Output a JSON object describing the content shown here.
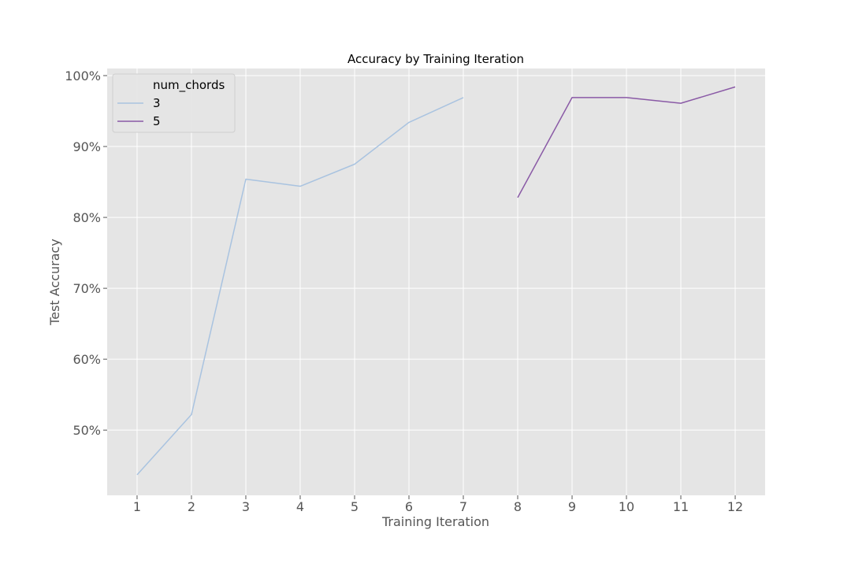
{
  "chart_data": {
    "type": "line",
    "title": "Accuracy by Training Iteration",
    "xlabel": "Training Iteration",
    "ylabel": "Test Accuracy",
    "xlim": [
      0.45,
      12.55
    ],
    "ylim": [
      0.408,
      1.01
    ],
    "x_ticks": [
      1,
      2,
      3,
      4,
      5,
      6,
      7,
      8,
      9,
      10,
      11,
      12
    ],
    "y_ticks": [
      0.5,
      0.6,
      0.7,
      0.8,
      0.9,
      1.0
    ],
    "y_tick_labels": [
      "50%",
      "60%",
      "70%",
      "80%",
      "90%",
      "100%"
    ],
    "grid": true,
    "legend": {
      "title": "num_chords",
      "placement": "top-left"
    },
    "series": [
      {
        "name": "3",
        "color": "#a9c3e0",
        "x": [
          1,
          2,
          3,
          4,
          5,
          6,
          7
        ],
        "values": [
          0.437,
          0.522,
          0.854,
          0.844,
          0.875,
          0.934,
          0.969
        ]
      },
      {
        "name": "5",
        "color": "#8a5aa6",
        "x": [
          8,
          9,
          10,
          11,
          12
        ],
        "values": [
          0.828,
          0.969,
          0.969,
          0.961,
          0.984
        ]
      }
    ]
  }
}
